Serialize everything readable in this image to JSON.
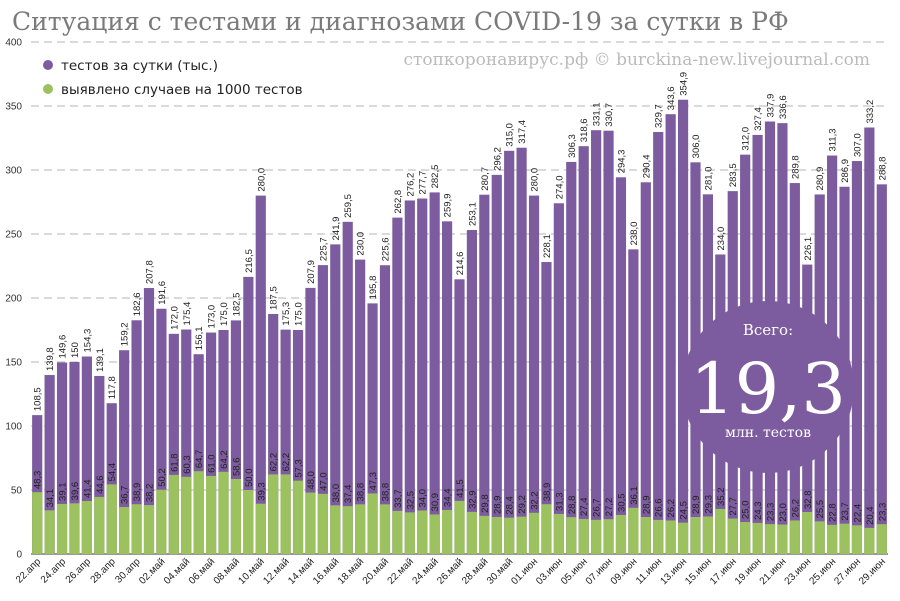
{
  "title": "Ситуация с тестами и диагнозами COVID-19 за сутки в РФ",
  "watermark": "стопкоронавирус.рф © burckina-new.livejournal.com",
  "colors": {
    "tests": "#7c5c9e",
    "cases": "#9bc25f",
    "badge": "#7c5c9e",
    "title": "#7a7a7a"
  },
  "badge": {
    "top": "Всего:",
    "value": "19,3",
    "bottom": "млн. тестов"
  },
  "chart_data": {
    "type": "bar",
    "title": "Ситуация с тестами и диагнозами COVID-19 за сутки в РФ",
    "ylim": [
      0,
      400
    ],
    "yticks": [
      0,
      50,
      100,
      150,
      200,
      250,
      300,
      350,
      400
    ],
    "grid": true,
    "legend_position": "top-left",
    "x": [
      "22.апр",
      "23.апр",
      "24.апр",
      "25.апр",
      "26.апр",
      "27.апр",
      "28.апр",
      "29.апр",
      "30.апр",
      "01.май",
      "02.май",
      "03.май",
      "04.май",
      "05.май",
      "06.май",
      "07.май",
      "08.май",
      "09.май",
      "10.май",
      "11.май",
      "12.май",
      "13.май",
      "14.май",
      "15.май",
      "16.май",
      "17.май",
      "18.май",
      "19.май",
      "20.май",
      "21.май",
      "22.май",
      "23.май",
      "24.май",
      "25.май",
      "26.май",
      "27.май",
      "28.май",
      "29.май",
      "30.май",
      "31.май",
      "01.июн",
      "02.июн",
      "03.июн",
      "04.июн",
      "05.июн",
      "06.июн",
      "07.июн",
      "08.июн",
      "09.июн",
      "10.июн",
      "11.июн",
      "12.июн",
      "13.июн",
      "14.июн",
      "15.июн",
      "16.июн",
      "17.июн",
      "18.июн",
      "19.июн",
      "20.июн",
      "21.июн",
      "22.июн",
      "23.июн",
      "24.июн",
      "25.июн",
      "26.июн",
      "27.июн",
      "28.июн",
      "29.июн"
    ],
    "xtick_labels": [
      "22.апр",
      "24.апр",
      "26.апр",
      "28.апр",
      "30.апр",
      "02.май",
      "04.май",
      "06.май",
      "08.май",
      "10.май",
      "12.май",
      "14.май",
      "16.май",
      "18.май",
      "20.май",
      "22.май",
      "24.май",
      "26.май",
      "28.май",
      "30.май",
      "01.июн",
      "03.июн",
      "05.июн",
      "07.июн",
      "09.июн",
      "11.июн",
      "13.июн",
      "15.июн",
      "17.июн",
      "19.июн",
      "21.июн",
      "23.июн",
      "25.июн",
      "27.июн",
      "29.июн"
    ],
    "series": [
      {
        "name": "тестов за сутки (тыс.)",
        "values": [
          108.5,
          139.8,
          149.6,
          150,
          154.3,
          139.1,
          117.8,
          159.2,
          182.6,
          207.8,
          191.6,
          172.0,
          175.4,
          156.1,
          173.0,
          175.0,
          182.5,
          216.5,
          280.0,
          187.5,
          175.3,
          175.0,
          207.9,
          225.7,
          241.9,
          259.5,
          230.0,
          195.8,
          225.6,
          262.8,
          276.2,
          277.7,
          282.5,
          259.9,
          214.6,
          253.1,
          280.7,
          296.2,
          315.0,
          317.4,
          280.0,
          228.1,
          274.0,
          306.3,
          318.6,
          331.1,
          330.7,
          294.3,
          238.0,
          290.4,
          329.7,
          343.6,
          354.9,
          306.0,
          281.0,
          234.0,
          283.5,
          312.0,
          327.4,
          337.9,
          336.6,
          289.8,
          226.1,
          280.9,
          311.3,
          286.9,
          307.0,
          333.2,
          288.8
        ],
        "labels": [
          "108,5",
          "139,8",
          "149,6",
          "150",
          "154,3",
          "139,1",
          "117,8",
          "159,2",
          "182,6",
          "207,8",
          "191,6",
          "172,0",
          "175,4",
          "156,1",
          "173,0",
          "175,0",
          "182,5",
          "216,5",
          "280,0",
          "187,5",
          "175,3",
          "175,0",
          "207,9",
          "225,7",
          "241,9",
          "259,5",
          "230,0",
          "195,8",
          "225,6",
          "262,8",
          "276,2",
          "277,7",
          "282,5",
          "259,9",
          "214,6",
          "253,1",
          "280,7",
          "296,2",
          "315,0",
          "317,4",
          "280,0",
          "228,1",
          "274,0",
          "306,3",
          "318,6",
          "331,1",
          "330,7",
          "294,3",
          "238,0",
          "290,4",
          "329,7",
          "343,6",
          "354,9",
          "306,0",
          "281,0",
          "234,0",
          "283,5",
          "312,0",
          "327,4",
          "337,9",
          "336,6",
          "289,8",
          "226,1",
          "280,9",
          "311,3",
          "286,9",
          "307,0",
          "333,2",
          "288,8"
        ]
      },
      {
        "name": "выявлено случаев на 1000 тестов",
        "values": [
          48.3,
          34.1,
          39.1,
          39.6,
          41.4,
          44.6,
          54.4,
          36.7,
          38.9,
          38.2,
          50.2,
          61.8,
          60.3,
          64.7,
          61.0,
          64.2,
          58.6,
          50.0,
          39.3,
          62.2,
          62.2,
          57.3,
          48.0,
          47.0,
          38.0,
          37.4,
          38.8,
          47.3,
          38.8,
          33.7,
          32.5,
          34.0,
          30.9,
          34.4,
          41.5,
          32.9,
          29.8,
          28.9,
          28.4,
          29.2,
          32.2,
          38.9,
          31.3,
          28.8,
          27.4,
          26.7,
          27.2,
          30.5,
          36.1,
          28.9,
          26.6,
          26.2,
          24.5,
          28.9,
          29.3,
          35.2,
          27.7,
          25.0,
          24.3,
          23.3,
          23.0,
          26.2,
          32.8,
          25.5,
          22.8,
          23.7,
          22.4,
          20.4,
          23.3
        ],
        "labels": [
          "48,3",
          "34,1",
          "39,1",
          "39,6",
          "41,4",
          "44,6",
          "54,4",
          "36,7",
          "38,9",
          "38,2",
          "50,2",
          "61,8",
          "60,3",
          "64,7",
          "61,0",
          "64,2",
          "58,6",
          "50,0",
          "39,3",
          "62,2",
          "62,2",
          "57,3",
          "48,0",
          "47,0",
          "38,0",
          "37,4",
          "38,8",
          "47,3",
          "38,8",
          "33,7",
          "32,5",
          "34,0",
          "30,9",
          "34,4",
          "41,5",
          "32,9",
          "29,8",
          "28,9",
          "28,4",
          "29,2",
          "32,2",
          "38,9",
          "31,3",
          "28,8",
          "27,4",
          "26,7",
          "27,2",
          "30,5",
          "36,1",
          "28,9",
          "26,6",
          "26,2",
          "24,5",
          "28,9",
          "29,3",
          "35,2",
          "27,7",
          "25,0",
          "24,3",
          "23,3",
          "23,0",
          "26,2",
          "32,8",
          "25,5",
          "22,8",
          "23,7",
          "22,4",
          "20,4",
          "23,3"
        ]
      }
    ]
  }
}
